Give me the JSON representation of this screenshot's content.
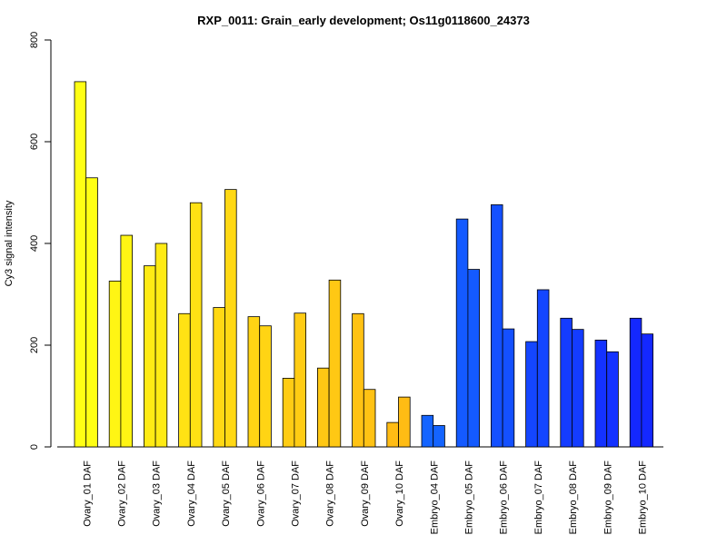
{
  "chart_data": {
    "type": "bar",
    "title": "RXP_0011: Grain_early development; Os11g0118600_24373",
    "xlabel": "",
    "ylabel": "Cy3 signal intensity",
    "ylim": [
      0,
      800
    ],
    "yticks": [
      0,
      200,
      400,
      600,
      800
    ],
    "grid": false,
    "legend": "none",
    "categories": [
      "Ovary_01 DAF",
      "Ovary_02 DAF",
      "Ovary_03 DAF",
      "Ovary_04 DAF",
      "Ovary_05 DAF",
      "Ovary_06 DAF",
      "Ovary_07 DAF",
      "Ovary_08 DAF",
      "Ovary_09 DAF",
      "Ovary_10 DAF",
      "Embryo_04 DAF",
      "Embryo_05 DAF",
      "Embryo_06 DAF",
      "Embryo_07 DAF",
      "Embryo_08 DAF",
      "Embryo_09 DAF",
      "Embryo_10 DAF"
    ],
    "colors": [
      "#ffff14",
      "#fff514",
      "#ffeb14",
      "#ffe214",
      "#ffd814",
      "#ffd414",
      "#ffcc14",
      "#ffc814",
      "#ffc214",
      "#ffbc14",
      "#1464ff",
      "#145aff",
      "#1450ff",
      "#1446ff",
      "#143cff",
      "#1432ff",
      "#1428ff"
    ],
    "series": [
      {
        "values": [
          718,
          326,
          356,
          262,
          274,
          256,
          135,
          155,
          262,
          48,
          62,
          448,
          476,
          207,
          253,
          210,
          253
        ]
      },
      {
        "values": [
          529,
          416,
          400,
          480,
          506,
          238,
          263,
          328,
          113,
          98,
          42,
          349,
          232,
          309,
          231,
          187,
          222
        ]
      }
    ]
  }
}
